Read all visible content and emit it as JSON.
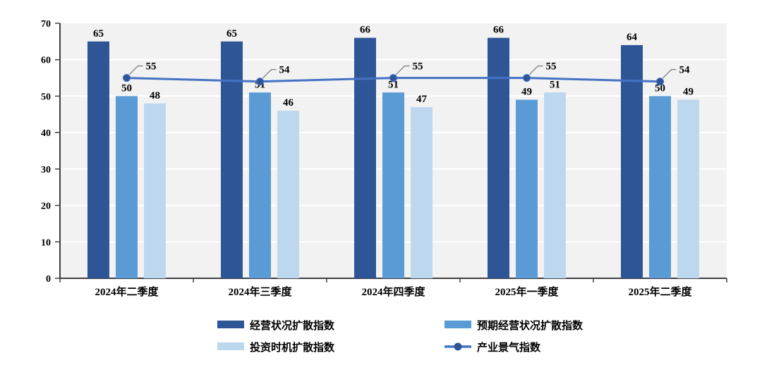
{
  "chart_data": {
    "type": "bar",
    "title": "",
    "categories": [
      "2024年二季度",
      "2024年三季度",
      "2024年四季度",
      "2025年一季度",
      "2025年二季度"
    ],
    "series": [
      {
        "name": "经营状况扩散指数",
        "type": "bar",
        "color": "#2E5697",
        "values": [
          65,
          65,
          66,
          66,
          64
        ]
      },
      {
        "name": "预期经营状况扩散指数",
        "type": "bar",
        "color": "#5B9BD5",
        "values": [
          50,
          51,
          51,
          49,
          50
        ]
      },
      {
        "name": "投资时机扩散指数",
        "type": "bar",
        "color": "#BDD7EE",
        "values": [
          48,
          46,
          47,
          51,
          49
        ]
      },
      {
        "name": "产业景气指数",
        "type": "line",
        "color": "#4472C4",
        "marker_color": "#2E5697",
        "values": [
          55,
          54,
          55,
          55,
          54
        ]
      }
    ],
    "xlabel": "",
    "ylabel": "",
    "ylim": [
      0,
      70
    ],
    "ytick_interval": 10,
    "yticks": [
      0,
      10,
      20,
      30,
      40,
      50,
      60,
      70
    ],
    "grid": "horizontal",
    "grid_color": "#FFFFFF",
    "plot_background": "#F2F2F2",
    "axis_color": "#404040",
    "data_labels": true,
    "label_leader_color": "#7F7F7F",
    "legend_position": "bottom",
    "legend_rows": [
      [
        0,
        1
      ],
      [
        2,
        3
      ]
    ]
  }
}
